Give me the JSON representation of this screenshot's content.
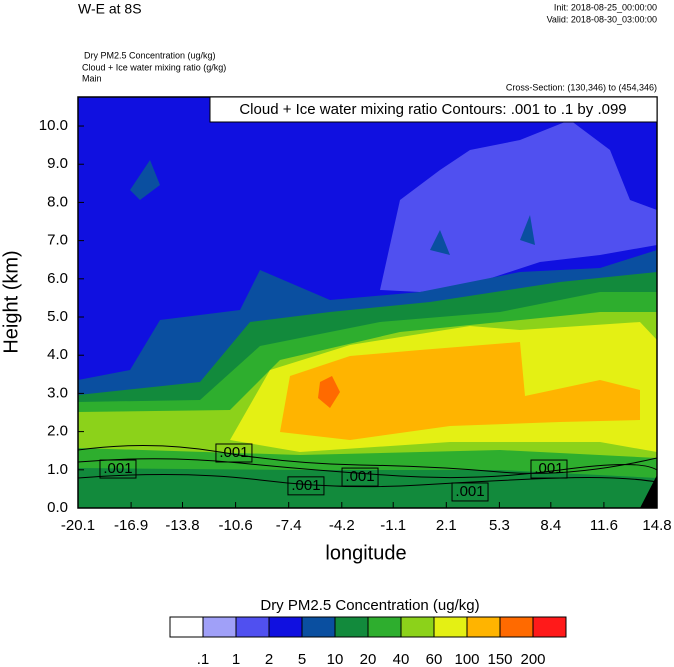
{
  "chart_data": {
    "type": "contour",
    "title": "W-E at 8S",
    "init": "Init: 2018-08-25_00:00:00",
    "valid": "Valid: 2018-08-30_03:00:00",
    "subtitles": [
      "Dry PM2.5 Concentration   (ug/kg)",
      "Cloud + Ice water mixing ratio   (g/kg)",
      "Main"
    ],
    "cross_section": "Cross-Section: (130,346) to (454,346)",
    "contour_note": "Cloud + Ice water mixing ratio Contours: .001 to .1 by .099",
    "xlabel": "longitude",
    "ylabel": "Height (km)",
    "xlim": [
      -20.1,
      14.8
    ],
    "xticks": [
      -20.1,
      -16.9,
      -13.8,
      -10.6,
      -7.4,
      -4.2,
      -1.1,
      2.1,
      5.3,
      8.4,
      11.6,
      14.8
    ],
    "ylim": [
      0,
      10.76
    ],
    "yticks": [
      {
        "value": 0,
        "label": "0.0"
      },
      {
        "value": 1,
        "label": "1.0"
      },
      {
        "value": 2,
        "label": "2.0"
      },
      {
        "value": 3,
        "label": "3.0"
      },
      {
        "value": 4,
        "label": "4.0"
      },
      {
        "value": 5,
        "label": "5.0"
      },
      {
        "value": 6,
        "label": "6.0"
      },
      {
        "value": 7,
        "label": "7.0"
      },
      {
        "value": 8,
        "label": "8.0"
      },
      {
        "value": 9,
        "label": "9.0"
      },
      {
        "value": 10,
        "label": "10.0"
      }
    ],
    "contour_labels": [
      {
        "text": ".001",
        "x": -17.69,
        "y": 1.02
      },
      {
        "text": ".001",
        "x": -10.7,
        "y": 1.44
      },
      {
        "text": ".001",
        "x": -6.36,
        "y": 0.58
      },
      {
        "text": ".001",
        "x": -3.1,
        "y": 0.81
      },
      {
        "text": ".001",
        "x": 3.53,
        "y": 0.42
      },
      {
        "text": ".001",
        "x": 8.29,
        "y": 1.02
      }
    ],
    "colorbar_title": "Dry PM2.5 Concentration  (ug/kg)",
    "colorbar_levels": [
      {
        "value": 0.1,
        "label": ".1"
      },
      1,
      2,
      5,
      10,
      20,
      40,
      60,
      100,
      150,
      200
    ],
    "colorbar_colors": [
      "#ffffff",
      "#a0a0f8",
      "#5050f0",
      "#1010e0",
      "#0a4fa0",
      "#128a3c",
      "#2eae2e",
      "#8cd21a",
      "#e4f014",
      "#ffb400",
      "#ff6a00",
      "#ff1a1a"
    ]
  }
}
